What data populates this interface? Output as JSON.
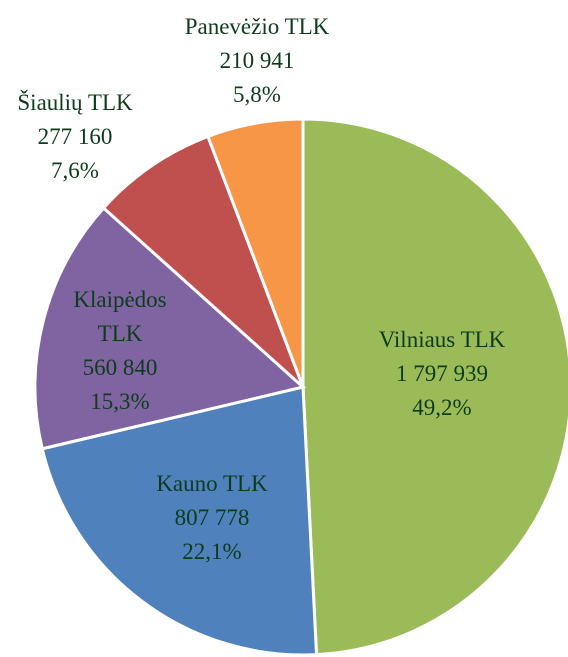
{
  "chart_data": {
    "type": "pie",
    "categories": [
      "Vilniaus TLK",
      "Kauno TLK",
      "Klaipėdos TLK",
      "Šiaulių TLK",
      "Panevėžio TLK"
    ],
    "values": [
      1797939,
      807778,
      560840,
      277160,
      210941
    ],
    "value_labels": [
      "1 797 939",
      "807 778",
      "560 840",
      "277 160",
      "210 941"
    ],
    "percents": [
      49.2,
      22.1,
      15.3,
      7.6,
      5.8
    ],
    "percent_labels": [
      "49,2%",
      "22,1%",
      "15,3%",
      "7,6%",
      "5,8%"
    ],
    "colors": [
      "#9bbb59",
      "#4f81bd",
      "#8064a2",
      "#c0504d",
      "#f79646"
    ]
  }
}
